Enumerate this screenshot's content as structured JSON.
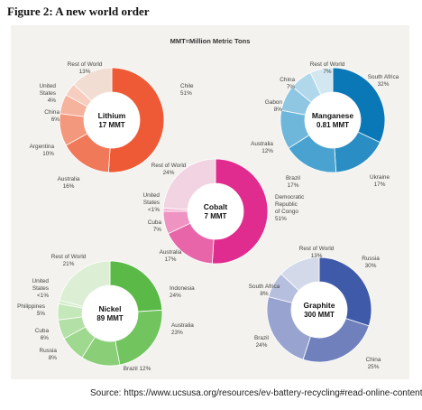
{
  "figure_title": "Figure 2: A new world order",
  "source": "Source: https://www.ucsusa.org/resources/ev-battery-recycling#read-online-content",
  "unit_note": "MMT=Million Metric Tons",
  "chart_data": [
    {
      "type": "pie",
      "title": "Lithium",
      "subtitle": "17 MMT",
      "values": [
        51,
        16,
        10,
        6,
        4,
        13
      ],
      "colors": [
        "#ee5a36",
        "#f0795a",
        "#f3987c",
        "#f5b39e",
        "#f6cdbe",
        "#f2ddd3"
      ],
      "labels": [
        {
          "name": "Chile",
          "value": "51%"
        },
        {
          "name": "Australia",
          "value": "16%"
        },
        {
          "name": "Argentina",
          "value": "10%"
        },
        {
          "name": "China",
          "value": "6%"
        },
        {
          "name": "United States",
          "value": "4%"
        },
        {
          "name": "Rest of World",
          "value": "13%"
        }
      ]
    },
    {
      "type": "pie",
      "title": "Manganese",
      "subtitle": "0.81 MMT",
      "values": [
        32,
        17,
        17,
        12,
        8,
        7,
        7
      ],
      "colors": [
        "#0a78b6",
        "#2a8ec5",
        "#4aa2d0",
        "#6eb6da",
        "#8fc7e2",
        "#b0d8ea",
        "#d2e7f0"
      ],
      "labels": [
        {
          "name": "South Africa",
          "value": "32%"
        },
        {
          "name": "Ukraine",
          "value": "17%"
        },
        {
          "name": "Brazil",
          "value": "17%"
        },
        {
          "name": "Australia",
          "value": "12%"
        },
        {
          "name": "Gabon",
          "value": "8%"
        },
        {
          "name": "China",
          "value": "7%"
        },
        {
          "name": "Rest of World",
          "value": "7%"
        }
      ]
    },
    {
      "type": "pie",
      "title": "Cobalt",
      "subtitle": "7 MMT",
      "values": [
        51,
        17,
        7,
        1,
        24
      ],
      "colors": [
        "#e02c8e",
        "#e865a9",
        "#ef94c2",
        "#f3b4d5",
        "#f2d3e2"
      ],
      "labels": [
        {
          "name": "Democratic Republic of Congo",
          "value": "51%"
        },
        {
          "name": "Australia",
          "value": "17%"
        },
        {
          "name": "Cuba",
          "value": "7%"
        },
        {
          "name": "United States",
          "value": "<1%"
        },
        {
          "name": "Rest of World",
          "value": "24%"
        }
      ]
    },
    {
      "type": "pie",
      "title": "Nickel",
      "subtitle": "89 MMT",
      "values": [
        24,
        23,
        12,
        8,
        6,
        5,
        1,
        21
      ],
      "colors": [
        "#5bb947",
        "#72c45f",
        "#8acf78",
        "#9fd88f",
        "#b3e0a6",
        "#c5e8ba",
        "#d2edc8",
        "#dcefd4"
      ],
      "labels": [
        {
          "name": "Indonesia",
          "value": "24%"
        },
        {
          "name": "Australia",
          "value": "23%"
        },
        {
          "name": "Brazil",
          "value": "12%"
        },
        {
          "name": "Russia",
          "value": "8%"
        },
        {
          "name": "Cuba",
          "value": "6%"
        },
        {
          "name": "Philippines",
          "value": "5%"
        },
        {
          "name": "United States",
          "value": "<1%"
        },
        {
          "name": "Rest of World",
          "value": "21%"
        }
      ]
    },
    {
      "type": "pie",
      "title": "Graphite",
      "subtitle": "300 MMT",
      "values": [
        30,
        25,
        24,
        8,
        13
      ],
      "colors": [
        "#3f5aa8",
        "#6f80bd",
        "#98a4cf",
        "#b6bfde",
        "#d4d9ea"
      ],
      "labels": [
        {
          "name": "Russia",
          "value": "30%"
        },
        {
          "name": "China",
          "value": "25%"
        },
        {
          "name": "Brazil",
          "value": "24%"
        },
        {
          "name": "South Africa",
          "value": "8%"
        },
        {
          "name": "Rest of World",
          "value": "13%"
        }
      ]
    }
  ]
}
